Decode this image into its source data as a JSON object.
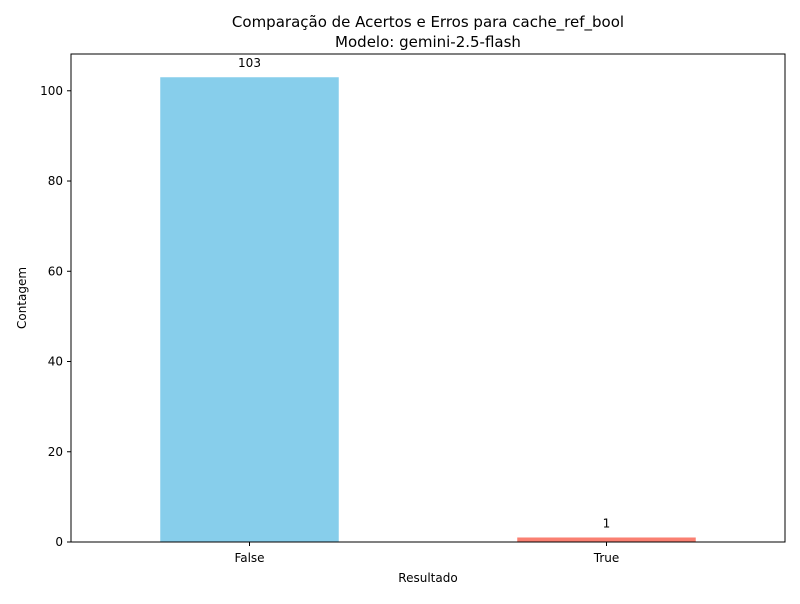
{
  "chart_data": {
    "type": "bar",
    "title_line1": "Comparação de Acertos e Erros para cache_ref_bool",
    "title_line2": "Modelo: gemini-2.5-flash",
    "xlabel": "Resultado",
    "ylabel": "Contagem",
    "categories": [
      "False",
      "True"
    ],
    "values": [
      103,
      1
    ],
    "bar_colors": [
      "#87CEEB",
      "#FA8072"
    ],
    "ylim": [
      0,
      108.15
    ],
    "yticks": [
      0,
      20,
      40,
      60,
      80,
      100
    ],
    "grid": false,
    "legend": "none"
  }
}
